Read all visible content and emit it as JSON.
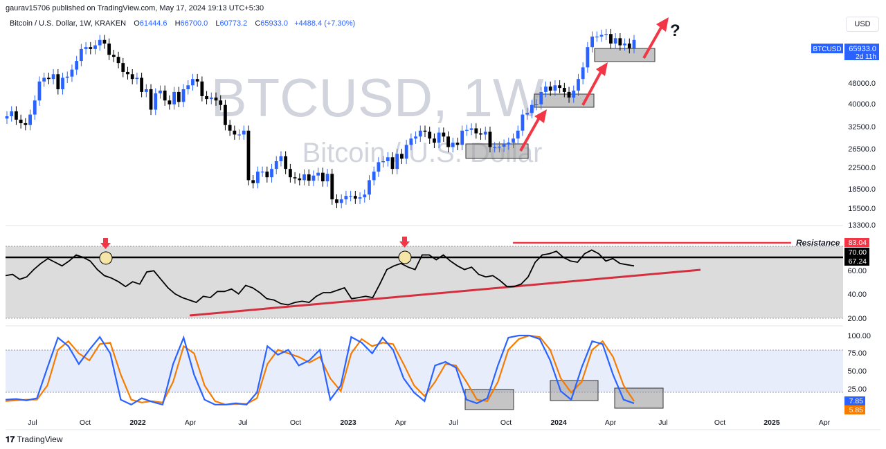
{
  "header": {
    "published": "gaurav15706 published on TradingView.com, May 17, 2024 19:13 UTC+5:30",
    "symbol_desc": "Bitcoin / U.S. Dollar, 1W, KRAKEN",
    "o_label": "O",
    "o": "61444.6",
    "h_label": "H",
    "h": "66700.0",
    "l_label": "L",
    "l": "60773.2",
    "c_label": "C",
    "c": "65933.0",
    "change": "+4488.4 (+7.30%)",
    "currency_button": "USD"
  },
  "watermark": {
    "big": "BTCUSD, 1W",
    "small": "Bitcoin / U.S. Dollar"
  },
  "price_scale": [
    "48000.0",
    "40000.0",
    "32500.0",
    "26500.0",
    "22500.0",
    "18500.0",
    "15500.0",
    "13300.0"
  ],
  "price_badge": {
    "symbol": "BTCUSD",
    "price": "65933.0",
    "countdown": "2d 11h"
  },
  "rsi_scale": [
    "60.00",
    "40.00",
    "20.00"
  ],
  "rsi_badges": {
    "resistance": "83.04",
    "mid": "70.00",
    "current": "67.24"
  },
  "resistance_label": "Resistance",
  "stoch_scale": [
    "100.00",
    "75.00",
    "50.00",
    "25.00"
  ],
  "stoch_badges": {
    "k": "7.85",
    "d": "5.85"
  },
  "question_mark": "?",
  "time_axis": [
    "Jul",
    "Oct",
    "2022",
    "Apr",
    "Jul",
    "Oct",
    "2023",
    "Apr",
    "Jul",
    "Oct",
    "2024",
    "Apr",
    "Jul",
    "Oct",
    "2025",
    "Apr"
  ],
  "footer": "TradingView",
  "colors": {
    "up": "#2962ff",
    "down": "#000000",
    "arrow": "#f23645",
    "trend": "#d32f3f",
    "stoch_k": "#2962ff",
    "stoch_d": "#f57c00"
  },
  "chart_data": [
    {
      "type": "candlestick",
      "title": "Bitcoin / U.S. Dollar, 1W, KRAKEN",
      "x_range": [
        "2021-05",
        "2025-06"
      ],
      "y_scale": "log",
      "ylim": [
        13300,
        70000
      ],
      "weekly_close_approx": [
        34000,
        35500,
        33000,
        32000,
        31500,
        34500,
        39000,
        46000,
        47500,
        47000,
        49000,
        43000,
        47500,
        48000,
        51000,
        55000,
        61000,
        62000,
        61000,
        63000,
        66000,
        64000,
        58000,
        57000,
        54000,
        50000,
        49000,
        47000,
        47500,
        42000,
        43000,
        36000,
        41500,
        42500,
        39000,
        37700,
        42000,
        38500,
        43000,
        44500,
        47000,
        46000,
        40500,
        39500,
        40000,
        39000,
        37500,
        31500,
        30000,
        29000,
        29000,
        30000,
        19500,
        19000,
        21000,
        21000,
        20000,
        21500,
        23000,
        24000,
        21500,
        20000,
        19800,
        19500,
        20500,
        19400,
        20300,
        20800,
        19300,
        20600,
        16500,
        16000,
        16500,
        17000,
        17000,
        16600,
        16800,
        17200,
        19500,
        21000,
        22800,
        23000,
        23800,
        21500,
        24500,
        23500,
        26500,
        28000,
        28500,
        30000,
        29700,
        28000,
        27000,
        29500,
        28500,
        26000,
        27000,
        26500,
        30000,
        30200,
        30600,
        29300,
        29000,
        29700,
        26000,
        26000,
        26100,
        26600,
        27000,
        28000,
        30000,
        34500,
        35000,
        37500,
        37700,
        42000,
        44000,
        42500,
        44500,
        43500,
        42000,
        40000,
        42500,
        47000,
        52000,
        62000,
        68000,
        68000,
        69000,
        69500,
        64000,
        67000,
        63000,
        64000,
        61500,
        66000
      ]
    },
    {
      "type": "line",
      "title": "RSI",
      "ylim": [
        15,
        95
      ],
      "levels": [
        70,
        83.04
      ],
      "values": [
        55,
        56,
        52,
        54,
        60,
        65,
        69,
        66,
        63,
        67,
        72,
        70,
        67,
        60,
        55,
        53,
        50,
        46,
        50,
        48,
        58,
        59,
        52,
        45,
        40,
        37,
        35,
        33,
        38,
        37,
        42,
        42,
        44,
        40,
        47,
        45,
        41,
        36,
        35,
        32,
        31,
        33,
        34,
        33,
        38,
        41,
        41,
        43,
        45,
        36,
        37,
        38,
        37,
        48,
        60,
        63,
        65,
        62,
        60,
        72,
        72,
        68,
        72,
        67,
        63,
        60,
        62,
        56,
        54,
        55,
        51,
        46,
        46,
        48,
        54,
        66,
        72,
        73,
        75,
        70,
        67,
        66,
        73,
        76,
        73,
        67,
        69,
        65,
        64,
        63
      ]
    },
    {
      "type": "line",
      "title": "Stoch RSI",
      "ylim": [
        0,
        100
      ],
      "series": [
        {
          "name": "K",
          "values": [
            10,
            11,
            9,
            12,
            55,
            97,
            85,
            60,
            80,
            98,
            75,
            10,
            3,
            12,
            7,
            3,
            60,
            97,
            45,
            10,
            3,
            3,
            5,
            3,
            20,
            85,
            73,
            80,
            58,
            65,
            80,
            10,
            30,
            98,
            90,
            75,
            97,
            80,
            40,
            20,
            8,
            58,
            63,
            55,
            10,
            5,
            12,
            58,
            97,
            100,
            100,
            95,
            65,
            22,
            10,
            55,
            92,
            88,
            45,
            10,
            5
          ]
        },
        {
          "name": "D",
          "values": [
            8,
            9,
            10,
            10,
            30,
            80,
            92,
            75,
            65,
            88,
            90,
            45,
            10,
            6,
            8,
            6,
            35,
            85,
            75,
            30,
            8,
            3,
            4,
            4,
            12,
            60,
            80,
            75,
            70,
            62,
            70,
            40,
            22,
            75,
            95,
            85,
            90,
            88,
            60,
            30,
            15,
            35,
            60,
            58,
            35,
            10,
            8,
            35,
            80,
            95,
            100,
            98,
            80,
            40,
            20,
            35,
            80,
            92,
            70,
            30,
            8
          ]
        }
      ],
      "levels": [
        80,
        20
      ]
    }
  ]
}
